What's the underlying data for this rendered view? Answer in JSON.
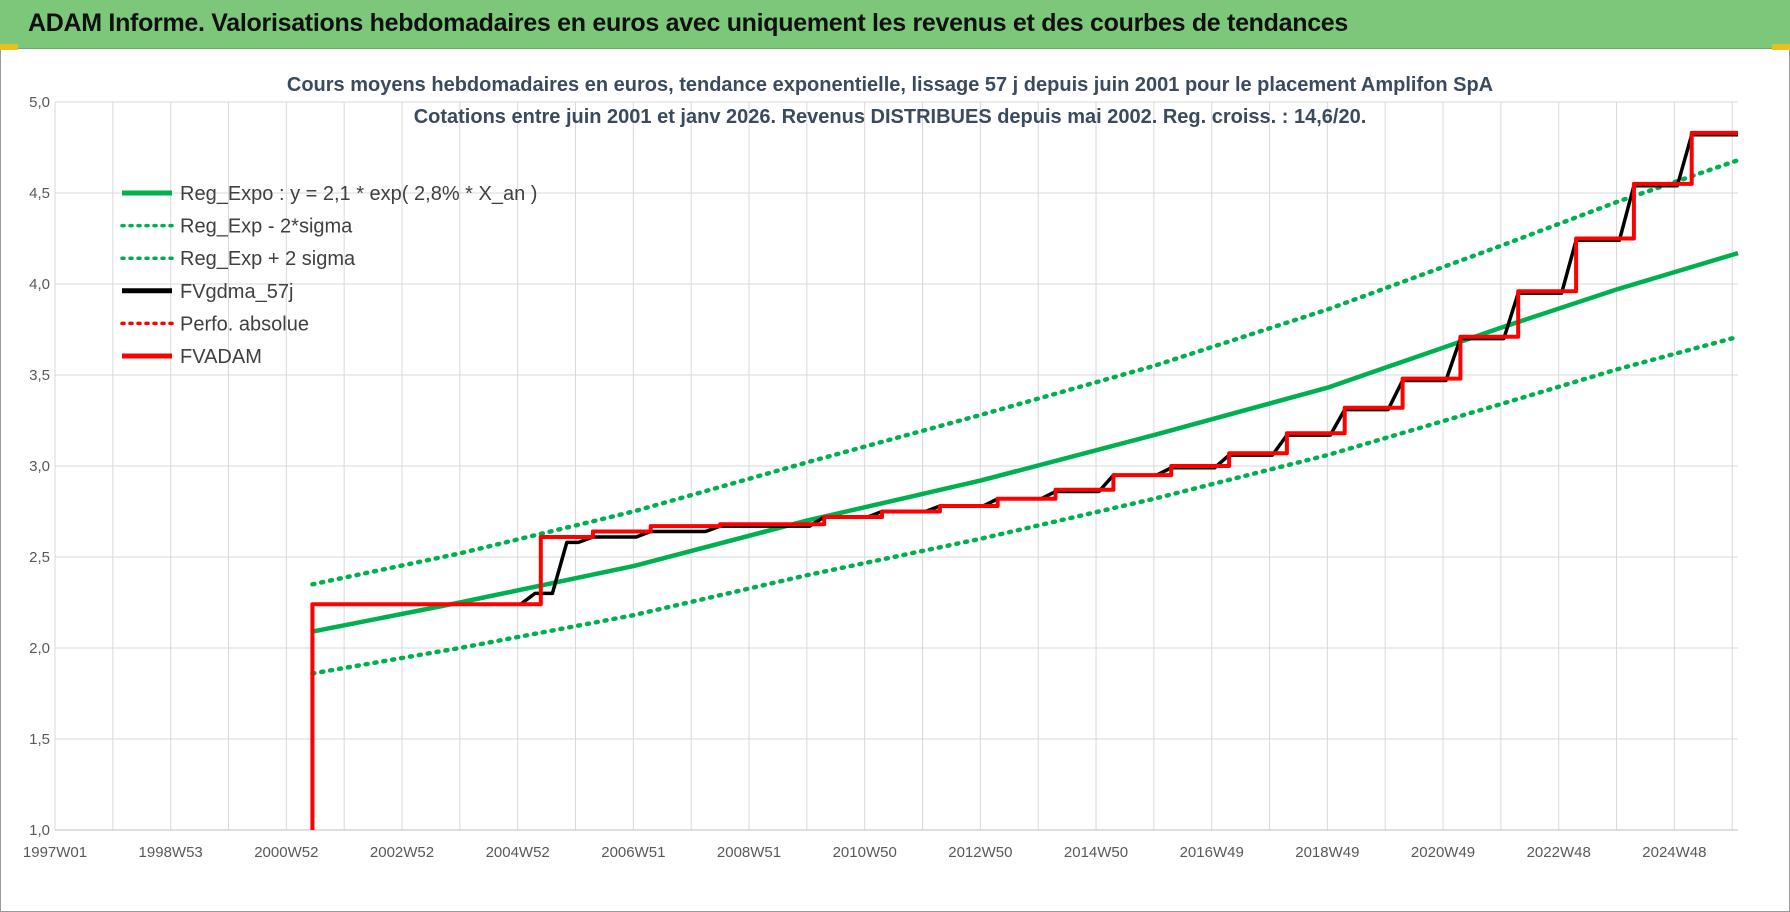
{
  "header": {
    "title": "ADAM Informe. Valorisations hebdomadaires en euros avec uniquement les revenus et des courbes de tendances"
  },
  "colors": {
    "header_bg": "#7dc77b",
    "green": "#00b050",
    "red": "#ff0000",
    "black": "#000000",
    "grid": "#d9d9d9"
  },
  "chart_data": {
    "type": "line",
    "title": "Cours moyens hebdomadaires en euros, tendance exponentielle, lissage 57 j depuis juin 2001 pour le placement Amplifon SpA",
    "subtitle": "Cotations entre juin 2001 et janv 2026.  Revenus DISTRIBUES depuis mai 2002. Reg. croiss. : 14,6/20.",
    "ylim": [
      1.0,
      5.0
    ],
    "yticks": [
      "1,0",
      "1,5",
      "2,0",
      "2,5",
      "3,0",
      "3,5",
      "4,0",
      "4,5",
      "5,0"
    ],
    "xlim": [
      1997.0,
      2026.1
    ],
    "xticks": [
      {
        "label": "1997W01",
        "x": 1997.0
      },
      {
        "label": "1998W53",
        "x": 1999.0
      },
      {
        "label": "2000W52",
        "x": 2001.0
      },
      {
        "label": "2002W52",
        "x": 2003.0
      },
      {
        "label": "2004W52",
        "x": 2005.0
      },
      {
        "label": "2006W51",
        "x": 2007.0
      },
      {
        "label": "2008W51",
        "x": 2009.0
      },
      {
        "label": "2010W50",
        "x": 2011.0
      },
      {
        "label": "2012W50",
        "x": 2013.0
      },
      {
        "label": "2014W50",
        "x": 2015.0
      },
      {
        "label": "2016W49",
        "x": 2017.0
      },
      {
        "label": "2018W49",
        "x": 2019.0
      },
      {
        "label": "2020W49",
        "x": 2021.0
      },
      {
        "label": "2022W48",
        "x": 2023.0
      },
      {
        "label": "2024W48",
        "x": 2025.0
      }
    ],
    "grid": true,
    "legend_position": "top-left",
    "series": [
      {
        "name": "Reg_Expo : y = 2,1 * exp( 2,8% *  X_an )",
        "color": "#00b050",
        "style": "solid",
        "x": [
          2001.45,
          2004.0,
          2007.0,
          2010.0,
          2013.0,
          2016.0,
          2019.0,
          2022.0,
          2024.0,
          2026.1
        ],
        "y": [
          2.09,
          2.25,
          2.45,
          2.7,
          2.92,
          3.17,
          3.43,
          3.76,
          3.97,
          4.17
        ]
      },
      {
        "name": "Reg_Exp - 2*sigma",
        "color": "#00b050",
        "style": "dotted",
        "x": [
          2001.45,
          2004.0,
          2007.0,
          2010.0,
          2013.0,
          2016.0,
          2019.0,
          2022.0,
          2024.0,
          2026.1
        ],
        "y": [
          1.86,
          2.0,
          2.18,
          2.4,
          2.6,
          2.82,
          3.06,
          3.34,
          3.53,
          3.71
        ]
      },
      {
        "name": "Reg_Exp + 2 sigma",
        "color": "#00b050",
        "style": "dotted",
        "x": [
          2001.45,
          2004.0,
          2007.0,
          2010.0,
          2013.0,
          2016.0,
          2019.0,
          2022.0,
          2024.0,
          2026.1
        ],
        "y": [
          2.35,
          2.52,
          2.75,
          3.02,
          3.28,
          3.55,
          3.86,
          4.21,
          4.45,
          4.68
        ]
      },
      {
        "name": "FVgdma_57j",
        "color": "#000000",
        "style": "solid",
        "x": [
          2001.45,
          2001.45,
          2005.3,
          2005.85,
          2006.3,
          2007.3,
          2008.5,
          2010.3,
          2011.3,
          2012.3,
          2013.3,
          2014.3,
          2015.3,
          2016.3,
          2017.3,
          2018.3,
          2019.3,
          2020.3,
          2021.3,
          2022.3,
          2023.3,
          2024.3,
          2025.3,
          2026.1
        ],
        "y": [
          1.0,
          2.24,
          2.3,
          2.58,
          2.61,
          2.64,
          2.67,
          2.72,
          2.75,
          2.78,
          2.82,
          2.86,
          2.95,
          2.99,
          3.06,
          3.17,
          3.31,
          3.47,
          3.7,
          3.95,
          4.24,
          4.54,
          4.82,
          4.82
        ]
      },
      {
        "name": "Perfo. absolue",
        "color": "#ff0000",
        "style": "dotted",
        "x": [],
        "y": []
      },
      {
        "name": "FVADAM",
        "color": "#ff0000",
        "style": "solid",
        "x": [
          2001.45,
          2001.45,
          2005.4,
          2005.4,
          2006.3,
          2007.3,
          2008.5,
          2010.3,
          2011.3,
          2012.3,
          2013.3,
          2014.3,
          2015.3,
          2016.3,
          2017.3,
          2018.3,
          2019.3,
          2020.3,
          2021.3,
          2022.3,
          2023.3,
          2024.3,
          2025.3,
          2026.1
        ],
        "y": [
          1.0,
          2.24,
          2.31,
          2.61,
          2.64,
          2.67,
          2.68,
          2.72,
          2.75,
          2.78,
          2.82,
          2.87,
          2.95,
          3.0,
          3.07,
          3.18,
          3.32,
          3.48,
          3.71,
          3.96,
          4.25,
          4.55,
          4.83,
          4.83
        ]
      }
    ]
  }
}
